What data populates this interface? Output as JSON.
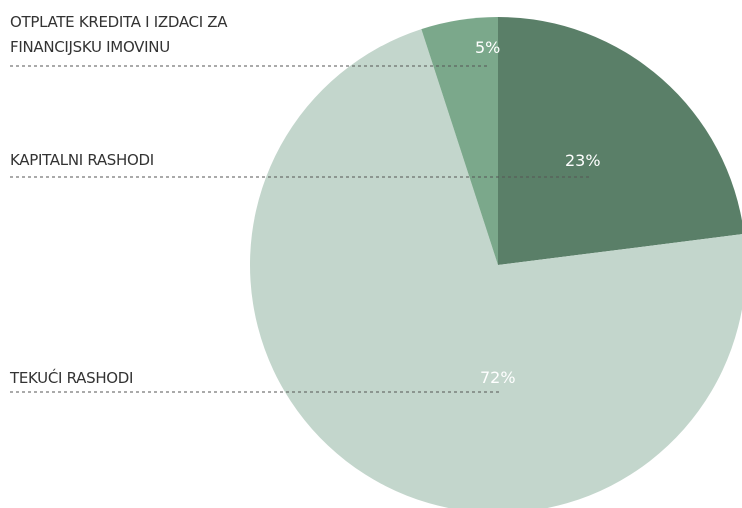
{
  "chart_data": {
    "type": "pie",
    "categories": [
      "KAPITALNI RASHODI",
      "TEKUĆI RASHODI",
      "OTPLATE KREDITA I IZDACI ZA FINANCIJSKU IMOVINU"
    ],
    "values": [
      23,
      72,
      5
    ],
    "value_labels": [
      "23%",
      "72%",
      "5%"
    ],
    "colors": [
      "#5a7f68",
      "#c3d6cc",
      "#7ba88b"
    ]
  }
}
